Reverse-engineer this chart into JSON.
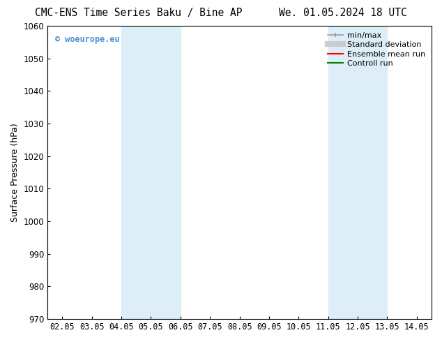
{
  "title_left": "CMC-ENS Time Series Baku / Bine AP",
  "title_right": "We. 01.05.2024 18 UTC",
  "ylabel": "Surface Pressure (hPa)",
  "ylim": [
    970,
    1060
  ],
  "yticks": [
    970,
    980,
    990,
    1000,
    1010,
    1020,
    1030,
    1040,
    1050,
    1060
  ],
  "xtick_labels": [
    "02.05",
    "03.05",
    "04.05",
    "05.05",
    "06.05",
    "07.05",
    "08.05",
    "09.05",
    "10.05",
    "11.05",
    "12.05",
    "13.05",
    "14.05"
  ],
  "xtick_positions": [
    0,
    1,
    2,
    3,
    4,
    5,
    6,
    7,
    8,
    9,
    10,
    11,
    12
  ],
  "xlim": [
    -0.5,
    12.5
  ],
  "shaded_bands": [
    {
      "x_start": 2,
      "x_end": 4,
      "color": "#ddeef8"
    },
    {
      "x_start": 9,
      "x_end": 11,
      "color": "#ddeef8"
    }
  ],
  "watermark_text": "© woeurope.eu",
  "watermark_color": "#4a90d9",
  "legend_entries": [
    {
      "label": "min/max",
      "color": "#999999",
      "lw": 1.2,
      "linestyle": "-",
      "type": "minmax"
    },
    {
      "label": "Standard deviation",
      "color": "#cccccc",
      "lw": 6,
      "linestyle": "-",
      "type": "band"
    },
    {
      "label": "Ensemble mean run",
      "color": "#ff0000",
      "lw": 1.5,
      "linestyle": "-",
      "type": "line"
    },
    {
      "label": "Controll run",
      "color": "#008000",
      "lw": 1.5,
      "linestyle": "-",
      "type": "line"
    }
  ],
  "bg_color": "#ffffff",
  "title_fontsize": 10.5,
  "axis_label_fontsize": 9,
  "tick_fontsize": 8.5,
  "legend_fontsize": 8
}
